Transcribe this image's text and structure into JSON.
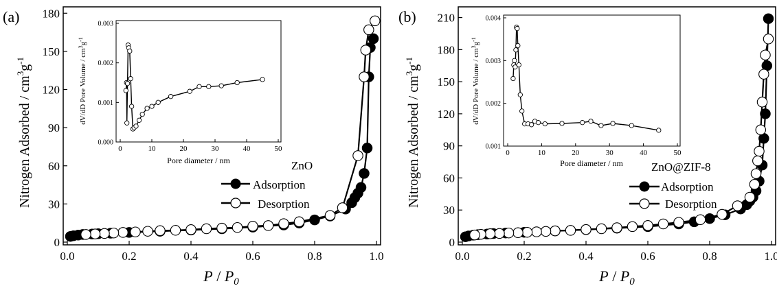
{
  "chart_data": [
    {
      "type": "line",
      "panel_label": "(a)",
      "sample_label": "ZnO",
      "xlabel": "P / P0",
      "xlabel_parts": {
        "main": "P",
        "sep": " / ",
        "p": "P",
        "sub": "0"
      },
      "ylabel": "Nitrogen Adsorbed / cm3g-1",
      "ylabel_parts": {
        "main": "Nitrogen Adsorbed / cm",
        "sup1": "3",
        "g": "g",
        "sup2": "-1"
      },
      "xlim": [
        0.0,
        1.0
      ],
      "ylim": [
        0,
        185
      ],
      "xticks": [
        "0.0",
        "0.2",
        "0.4",
        "0.6",
        "0.8",
        "1.0"
      ],
      "yticks": [
        "0",
        "30",
        "60",
        "90",
        "120",
        "150",
        "180"
      ],
      "legend_position": "lower-right",
      "series": [
        {
          "name": "Adsorption",
          "marker": "filled-circle",
          "x": [
            0.01,
            0.02,
            0.035,
            0.05,
            0.08,
            0.1,
            0.14,
            0.2,
            0.3,
            0.4,
            0.5,
            0.6,
            0.7,
            0.75,
            0.8,
            0.85,
            0.9,
            0.92,
            0.93,
            0.94,
            0.95,
            0.96,
            0.97,
            0.975,
            0.98,
            0.99
          ],
          "y": [
            4.5,
            5.0,
            5.5,
            6.0,
            6.3,
            6.6,
            7.0,
            7.6,
            8.5,
            9.5,
            10.5,
            11.8,
            13.5,
            15.0,
            17.5,
            20.5,
            26.0,
            31.0,
            35.0,
            38.5,
            43.0,
            54.0,
            74.0,
            130.0,
            153.0,
            160.0
          ]
        },
        {
          "name": "Desorption",
          "marker": "open-circle",
          "x": [
            0.995,
            0.975,
            0.965,
            0.96,
            0.94,
            0.89,
            0.85,
            0.75,
            0.7,
            0.65,
            0.6,
            0.55,
            0.5,
            0.45,
            0.4,
            0.35,
            0.3,
            0.26,
            0.22,
            0.18,
            0.15,
            0.12,
            0.09,
            0.06
          ],
          "y": [
            174.0,
            167.0,
            151.0,
            130.0,
            68.0,
            27.0,
            21.0,
            16.0,
            14.5,
            13.0,
            12.5,
            11.5,
            11.0,
            10.5,
            9.8,
            9.3,
            9.0,
            8.5,
            8.0,
            7.6,
            7.2,
            6.8,
            6.4,
            6.0
          ]
        }
      ],
      "inset": {
        "xlabel": "Pore diameter / nm",
        "ylabel": "dV/dD Pore Volume / cm3g-1",
        "ylabel_parts": {
          "main": "dV/dD Pore Volume / cm",
          "sup1": "3",
          "g": "g",
          "sup2": "-1"
        },
        "xlim": [
          0,
          50
        ],
        "ylim": [
          0,
          0.003
        ],
        "xticks": [
          "0",
          "10",
          "20",
          "30",
          "40",
          "50"
        ],
        "yticks": [
          "0.000",
          "0.001",
          "0.002",
          "0.003"
        ],
        "x": [
          1.8,
          2.0,
          2.1,
          2.3,
          2.5,
          2.7,
          3.0,
          3.3,
          3.6,
          4.0,
          4.4,
          5.0,
          6.0,
          7.0,
          8.5,
          10.0,
          12.0,
          16.0,
          22.0,
          25.0,
          28.0,
          32.0,
          37.0,
          45.0
        ],
        "y": [
          0.0013,
          0.0015,
          0.00048,
          0.00148,
          0.00245,
          0.00238,
          0.0023,
          0.0016,
          0.0009,
          0.00033,
          0.00036,
          0.0004,
          0.00055,
          0.0007,
          0.00085,
          0.0009,
          0.001,
          0.00115,
          0.00128,
          0.0014,
          0.0014,
          0.00142,
          0.0015,
          0.00158
        ]
      }
    },
    {
      "type": "line",
      "panel_label": "(b)",
      "sample_label": "ZnO@ZIF-8",
      "xlabel": "P / P0",
      "xlabel_parts": {
        "main": "P",
        "sep": " / ",
        "p": "P",
        "sub": "0"
      },
      "ylabel": "Nitrogen Adsorbed / cm3g-1",
      "ylabel_parts": {
        "main": "Nitrogen Adsorbed / cm",
        "sup1": "3",
        "g": "g",
        "sup2": "-1"
      },
      "xlim": [
        0.0,
        1.0
      ],
      "ylim": [
        0,
        220
      ],
      "xticks": [
        "0.0",
        "0.2",
        "0.4",
        "0.6",
        "0.8",
        "1.0"
      ],
      "yticks": [
        "0",
        "30",
        "60",
        "90",
        "120",
        "150",
        "180",
        "210"
      ],
      "legend_position": "lower-right",
      "series": [
        {
          "name": "Adsorption",
          "marker": "filled-circle",
          "x": [
            0.01,
            0.02,
            0.035,
            0.05,
            0.08,
            0.1,
            0.14,
            0.2,
            0.3,
            0.4,
            0.5,
            0.6,
            0.7,
            0.75,
            0.8,
            0.85,
            0.9,
            0.92,
            0.93,
            0.94,
            0.95,
            0.96,
            0.97,
            0.975,
            0.98,
            0.985,
            0.99
          ],
          "y": [
            5.0,
            5.8,
            6.5,
            7.0,
            7.5,
            8.0,
            8.5,
            9.2,
            10.5,
            11.7,
            13.0,
            14.5,
            17.0,
            19.0,
            22.0,
            25.5,
            31.0,
            35.0,
            38.5,
            42.0,
            48.0,
            57.0,
            72.0,
            97.0,
            120.0,
            165.0,
            209.0
          ]
        },
        {
          "name": "Desorption",
          "marker": "open-circle",
          "x": [
            0.99,
            0.98,
            0.975,
            0.97,
            0.965,
            0.96,
            0.955,
            0.95,
            0.945,
            0.93,
            0.89,
            0.84,
            0.77,
            0.7,
            0.65,
            0.6,
            0.55,
            0.5,
            0.45,
            0.4,
            0.35,
            0.3,
            0.27,
            0.24,
            0.21,
            0.18,
            0.15,
            0.12,
            0.09,
            0.06,
            0.04
          ],
          "y": [
            190.0,
            175.0,
            157.0,
            131.0,
            105.0,
            85.0,
            76.0,
            64.0,
            54.0,
            42.0,
            34.0,
            26.0,
            21.0,
            18.5,
            17.0,
            15.5,
            14.5,
            13.5,
            12.5,
            11.8,
            11.0,
            10.5,
            10.0,
            9.6,
            9.2,
            8.8,
            8.5,
            8.1,
            7.8,
            7.3,
            6.7
          ]
        }
      ],
      "inset": {
        "xlabel": "Pore diameter / nm",
        "ylabel": "dV/dD Pore Volume / cm3g-1",
        "ylabel_parts": {
          "main": "dV/dD Pore Volume / cm",
          "sup1": "3",
          "g": "g",
          "sup2": "-1"
        },
        "xlim": [
          0,
          50
        ],
        "ylim": [
          0.001,
          0.004
        ],
        "xticks": [
          "0",
          "10",
          "20",
          "30",
          "40",
          "50"
        ],
        "yticks": [
          "0.001",
          "0.002",
          "0.003",
          "0.004"
        ],
        "x": [
          1.6,
          1.8,
          2.0,
          2.2,
          2.4,
          2.6,
          2.8,
          3.0,
          3.3,
          3.7,
          4.2,
          5.0,
          6.0,
          7.0,
          8.0,
          9.0,
          11.0,
          16.0,
          22.0,
          24.5,
          27.5,
          31.0,
          36.5,
          44.5
        ],
        "y": [
          0.00258,
          0.0029,
          0.003,
          0.00285,
          0.00325,
          0.00378,
          0.00375,
          0.00335,
          0.0029,
          0.0022,
          0.00182,
          0.00152,
          0.00152,
          0.0015,
          0.00158,
          0.00155,
          0.00152,
          0.00153,
          0.00155,
          0.00158,
          0.00148,
          0.00153,
          0.00148,
          0.00137
        ]
      }
    }
  ]
}
